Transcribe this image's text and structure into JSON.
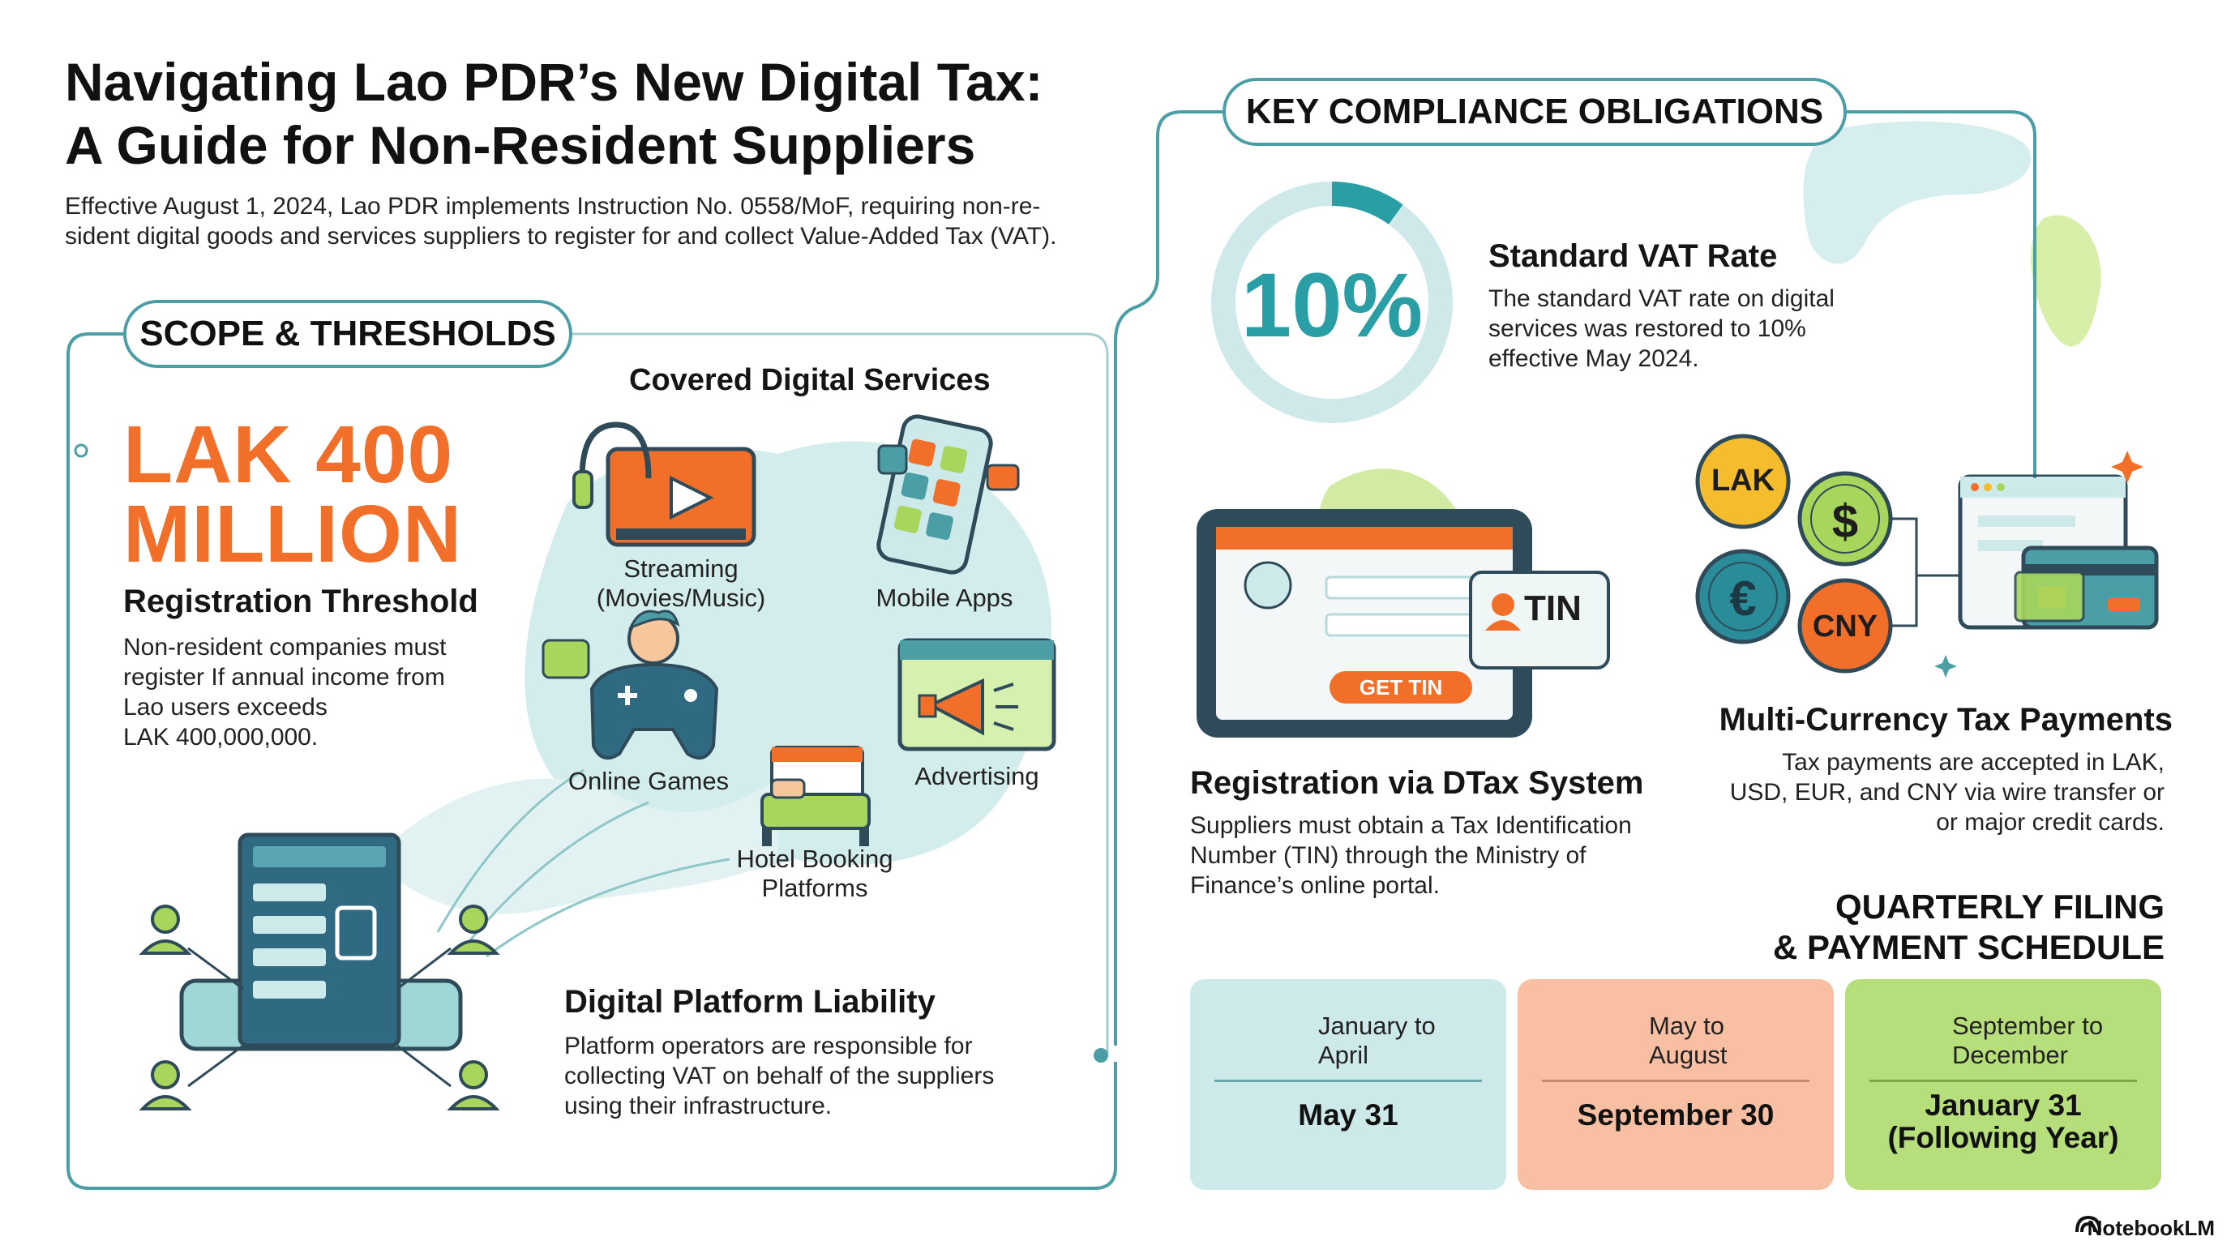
{
  "title_line1": "Navigating Lao PDR’s New Digital Tax:",
  "title_line2": "A Guide for Non-Resident Suppliers",
  "intro_line1": "Effective August 1, 2024, Lao PDR implements Instruction No. 0558/MoF, requiring non-re-",
  "intro_line2": "sident digital goods and services suppliers to register for and collect Value-Added Tax (VAT).",
  "scope": {
    "heading": "SCOPE & THRESHOLDS",
    "threshold_line1": "LAK 400",
    "threshold_line2": "MILLION",
    "threshold_label": "Registration Threshold",
    "threshold_text": [
      "Non-resident companies must",
      "register If annual income from",
      "Lao users exceeds",
      "LAK 400,000,000."
    ],
    "covered_title": "Covered Digital Services",
    "services": {
      "streaming": [
        "Streaming",
        "(Movies/Music)"
      ],
      "mobile_apps": "Mobile Apps",
      "online_games": "Online Games",
      "advertising": "Advertising",
      "hotel_booking": [
        "Hotel Booking",
        "Platforms"
      ]
    },
    "platform_title": "Digital Platform Liability",
    "platform_text": [
      "Platform operators are responsible for",
      "collecting VAT on behalf of the suppliers",
      "using their infrastructure."
    ]
  },
  "compliance": {
    "heading": "KEY COMPLIANCE OBLIGATIONS",
    "vat_value": "10%",
    "vat_share": 0.1,
    "vat_title": "Standard VAT Rate",
    "vat_text": [
      "The standard VAT rate on digital",
      "services was restored to 10%",
      "effective May 2024."
    ],
    "tin_badge": "TIN",
    "tin_button": "GET TIN",
    "dtax_title": "Registration via DTax System",
    "dtax_text": [
      "Suppliers must obtain a Tax Identification",
      "Number (TIN) through the Ministry of",
      "Finance’s online portal."
    ],
    "coins": {
      "lak": "LAK",
      "usd": "$",
      "eur": "€",
      "cny": "CNY"
    },
    "currency_title": "Multi-Currency Tax Payments",
    "currency_text": [
      "Tax payments are accepted in LAK,",
      "USD, EUR, and CNY via wire transfer or",
      "or major credit cards."
    ],
    "schedule_title_line1": "QUARTERLY FILING",
    "schedule_title_line2": "& PAYMENT SCHEDULE",
    "schedule": [
      {
        "period": [
          "January to",
          "April"
        ],
        "due": [
          "May 31"
        ]
      },
      {
        "period": [
          "May to",
          "August"
        ],
        "due": [
          "September 30"
        ]
      },
      {
        "period": [
          "September to",
          "December"
        ],
        "due": [
          "January 31",
          "(Following Year)"
        ]
      }
    ]
  },
  "footer": "NotebookLM",
  "colors": {
    "teal": "#4b9ea6",
    "orange": "#f26f2a",
    "green": "#a8d65c",
    "light_teal": "#cde9ea"
  }
}
